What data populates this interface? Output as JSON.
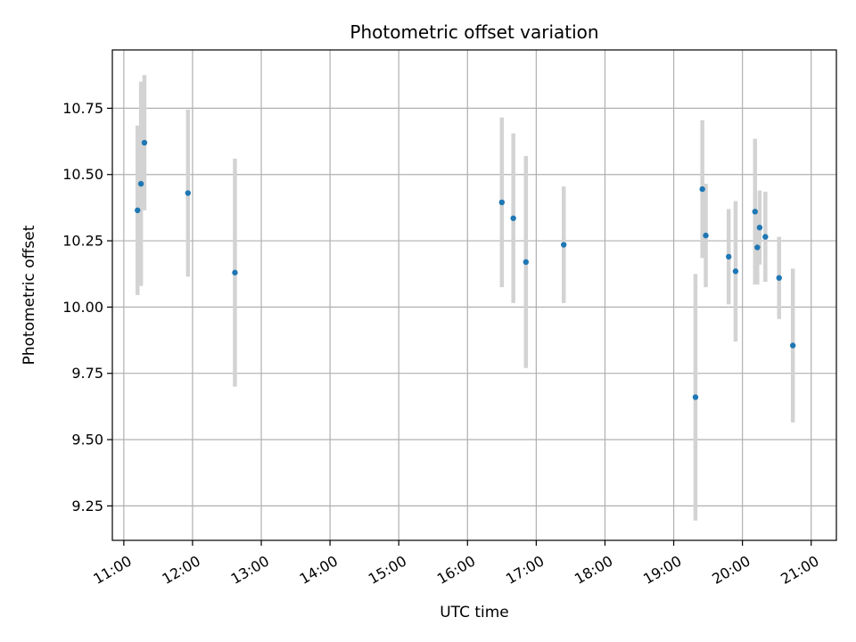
{
  "chart_data": {
    "type": "scatter",
    "title": "Photometric offset variation",
    "xlabel": "UTC time",
    "ylabel": "Photometric offset",
    "x_axis": {
      "type": "time",
      "min": "10:50",
      "max": "21:22",
      "ticks": [
        "11:00",
        "12:00",
        "13:00",
        "14:00",
        "15:00",
        "16:00",
        "17:00",
        "18:00",
        "19:00",
        "20:00",
        "21:00"
      ]
    },
    "y_axis": {
      "min": 9.12,
      "max": 10.97,
      "ticks": [
        "9.25",
        "9.50",
        "9.75",
        "10.00",
        "10.25",
        "10.50",
        "10.75"
      ]
    },
    "grid": true,
    "colors": {
      "marker": "#1f77b4",
      "errorbar": "#d3d3d3",
      "grid": "#b0b0b0"
    },
    "points": [
      {
        "x": "11:12",
        "y": 10.365,
        "err": 0.32
      },
      {
        "x": "11:15",
        "y": 10.465,
        "err": 0.385
      },
      {
        "x": "11:18",
        "y": 10.62,
        "err": 0.255
      },
      {
        "x": "11:56",
        "y": 10.43,
        "err": 0.315
      },
      {
        "x": "12:37",
        "y": 10.13,
        "err": 0.43
      },
      {
        "x": "16:30",
        "y": 10.395,
        "err": 0.32
      },
      {
        "x": "16:40",
        "y": 10.335,
        "err": 0.32
      },
      {
        "x": "16:51",
        "y": 10.17,
        "err": 0.4
      },
      {
        "x": "17:24",
        "y": 10.235,
        "err": 0.22
      },
      {
        "x": "19:19",
        "y": 9.66,
        "err": 0.465
      },
      {
        "x": "19:25",
        "y": 10.445,
        "err": 0.26
      },
      {
        "x": "19:28",
        "y": 10.27,
        "err": 0.195
      },
      {
        "x": "19:48",
        "y": 10.19,
        "err": 0.18
      },
      {
        "x": "19:54",
        "y": 10.135,
        "err": 0.265
      },
      {
        "x": "20:11",
        "y": 10.36,
        "err": 0.275
      },
      {
        "x": "20:13",
        "y": 10.225,
        "err": 0.14
      },
      {
        "x": "20:15",
        "y": 10.3,
        "err": 0.14
      },
      {
        "x": "20:20",
        "y": 10.265,
        "err": 0.17
      },
      {
        "x": "20:32",
        "y": 10.11,
        "err": 0.155
      },
      {
        "x": "20:44",
        "y": 9.855,
        "err": 0.29
      }
    ]
  }
}
